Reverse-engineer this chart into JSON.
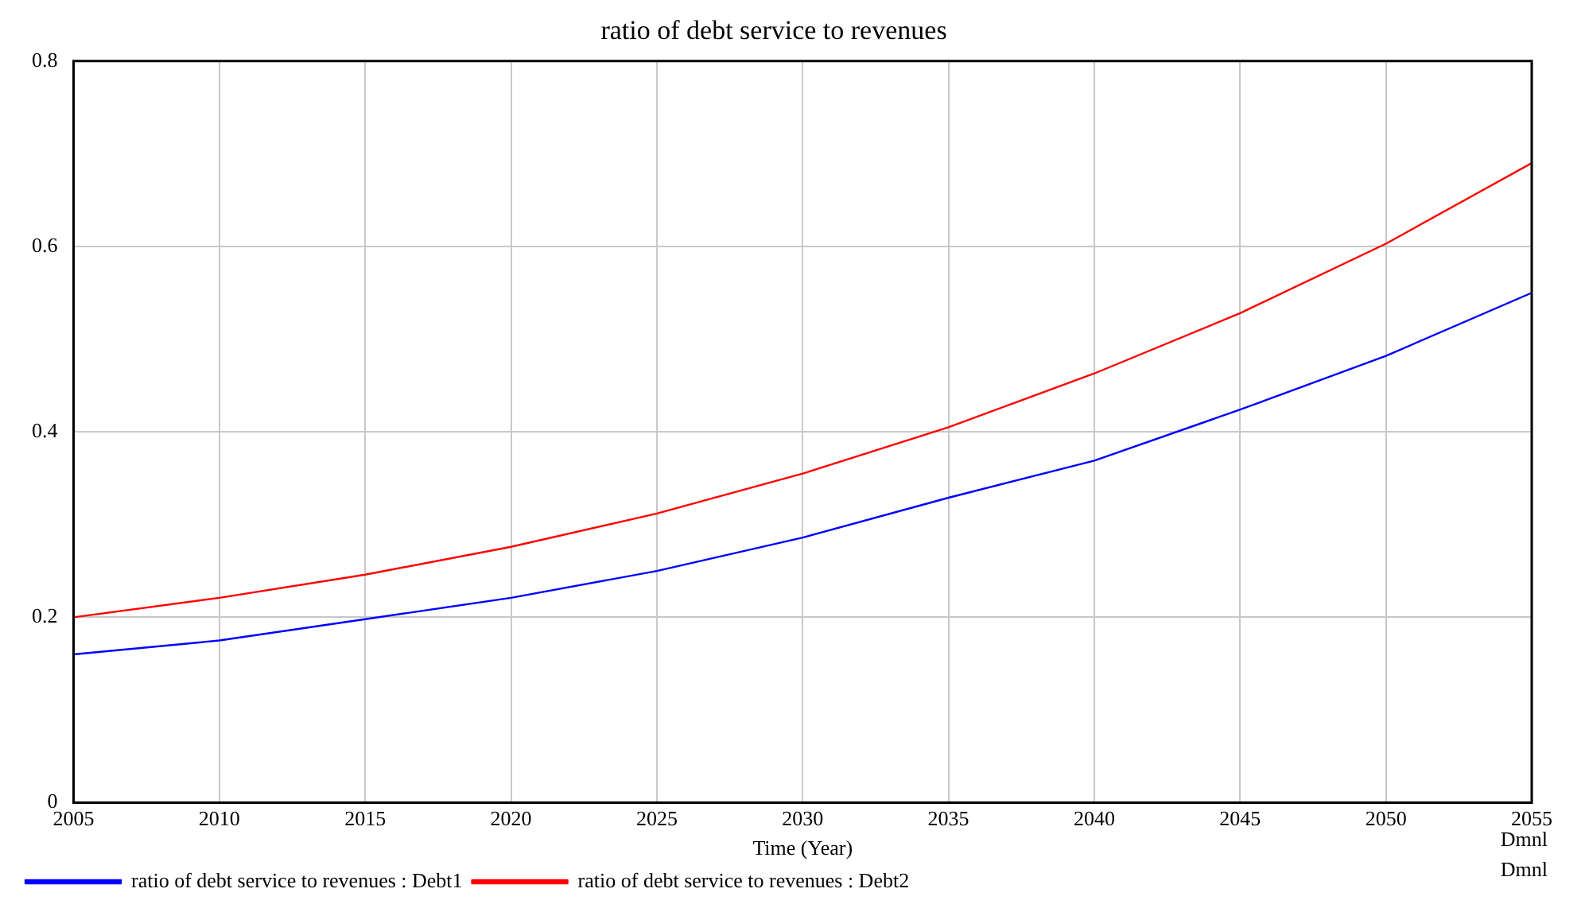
{
  "chart_data": {
    "type": "line",
    "title": "ratio of debt service to revenues",
    "xlabel": "Time (Year)",
    "x": [
      2005,
      2010,
      2015,
      2020,
      2025,
      2030,
      2035,
      2040,
      2045,
      2050,
      2055
    ],
    "series": [
      {
        "name": "ratio of debt service to revenues : Debt1",
        "color": "#0000ff",
        "values": [
          0.16,
          0.175,
          0.198,
          0.221,
          0.25,
          0.286,
          0.329,
          0.369,
          0.424,
          0.482,
          0.55
        ]
      },
      {
        "name": "ratio of debt service to revenues : Debt2",
        "color": "#ff0000",
        "values": [
          0.2,
          0.221,
          0.246,
          0.276,
          0.312,
          0.355,
          0.405,
          0.463,
          0.528,
          0.603,
          0.69
        ]
      }
    ],
    "xlim": [
      2005,
      2055
    ],
    "xticks": [
      2005,
      2010,
      2015,
      2020,
      2025,
      2030,
      2035,
      2040,
      2045,
      2050,
      2055
    ],
    "ylim": [
      0,
      0.8
    ],
    "yticks": [
      0,
      0.2,
      0.4,
      0.6,
      0.8
    ],
    "grid": true,
    "legend": "bottom",
    "marker": "none",
    "line_style": "solid",
    "annotations": [
      "Dmnl",
      "Dmnl"
    ]
  }
}
